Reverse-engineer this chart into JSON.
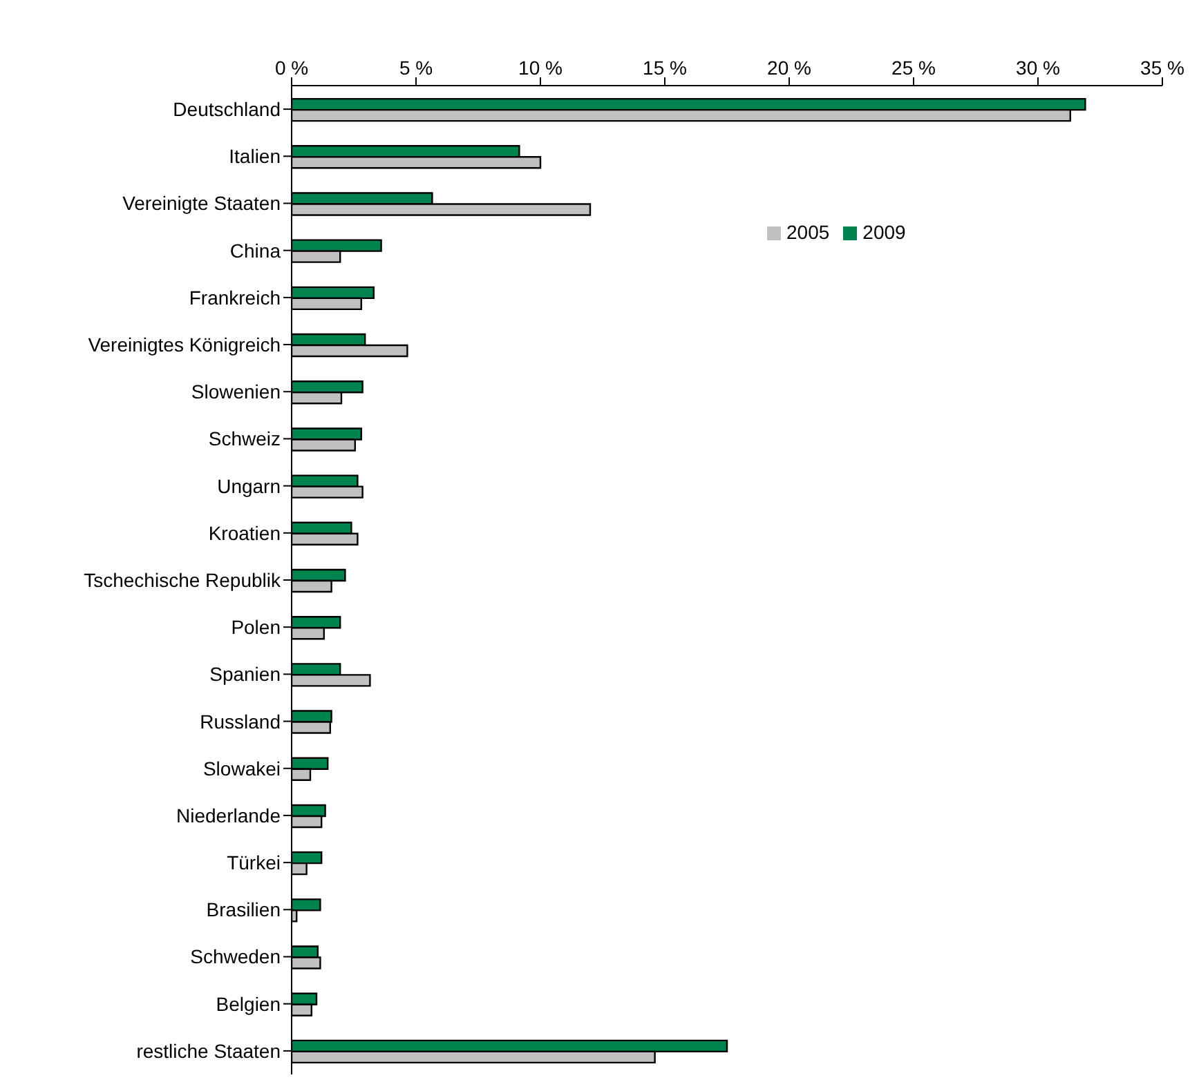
{
  "chart_data": {
    "type": "bar",
    "orientation": "horizontal",
    "categories": [
      "Deutschland",
      "Italien",
      "Vereinigte Staaten",
      "China",
      "Frankreich",
      "Vereinigtes Königreich",
      "Slowenien",
      "Schweiz",
      "Ungarn",
      "Kroatien",
      "Tschechische Republik",
      "Polen",
      "Spanien",
      "Russland",
      "Slowakei",
      "Niederlande",
      "Türkei",
      "Brasilien",
      "Schweden",
      "Belgien",
      "restliche Staaten"
    ],
    "series": [
      {
        "name": "2009",
        "color": "#00844f",
        "values": [
          31.9,
          9.15,
          5.65,
          3.6,
          3.3,
          2.95,
          2.85,
          2.8,
          2.65,
          2.4,
          2.15,
          1.95,
          1.95,
          1.6,
          1.45,
          1.35,
          1.2,
          1.15,
          1.05,
          1.0,
          17.5
        ]
      },
      {
        "name": "2005",
        "color": "#c0c0c0",
        "values": [
          31.3,
          10.0,
          12.0,
          1.95,
          2.8,
          4.65,
          2.0,
          2.55,
          2.85,
          2.65,
          1.6,
          1.3,
          3.15,
          1.55,
          0.75,
          1.2,
          0.6,
          0.2,
          1.15,
          0.8,
          14.6
        ]
      }
    ],
    "xlim": [
      0,
      35
    ],
    "xticks": [
      {
        "value": 0,
        "label": "0 %"
      },
      {
        "value": 5,
        "label": "5 %"
      },
      {
        "value": 10,
        "label": "10 %"
      },
      {
        "value": 15,
        "label": "15 %"
      },
      {
        "value": 20,
        "label": "20 %"
      },
      {
        "value": 25,
        "label": "25 %"
      },
      {
        "value": 30,
        "label": "30 %"
      },
      {
        "value": 35,
        "label": "35 %"
      }
    ],
    "grid": false,
    "legend": "top right"
  }
}
